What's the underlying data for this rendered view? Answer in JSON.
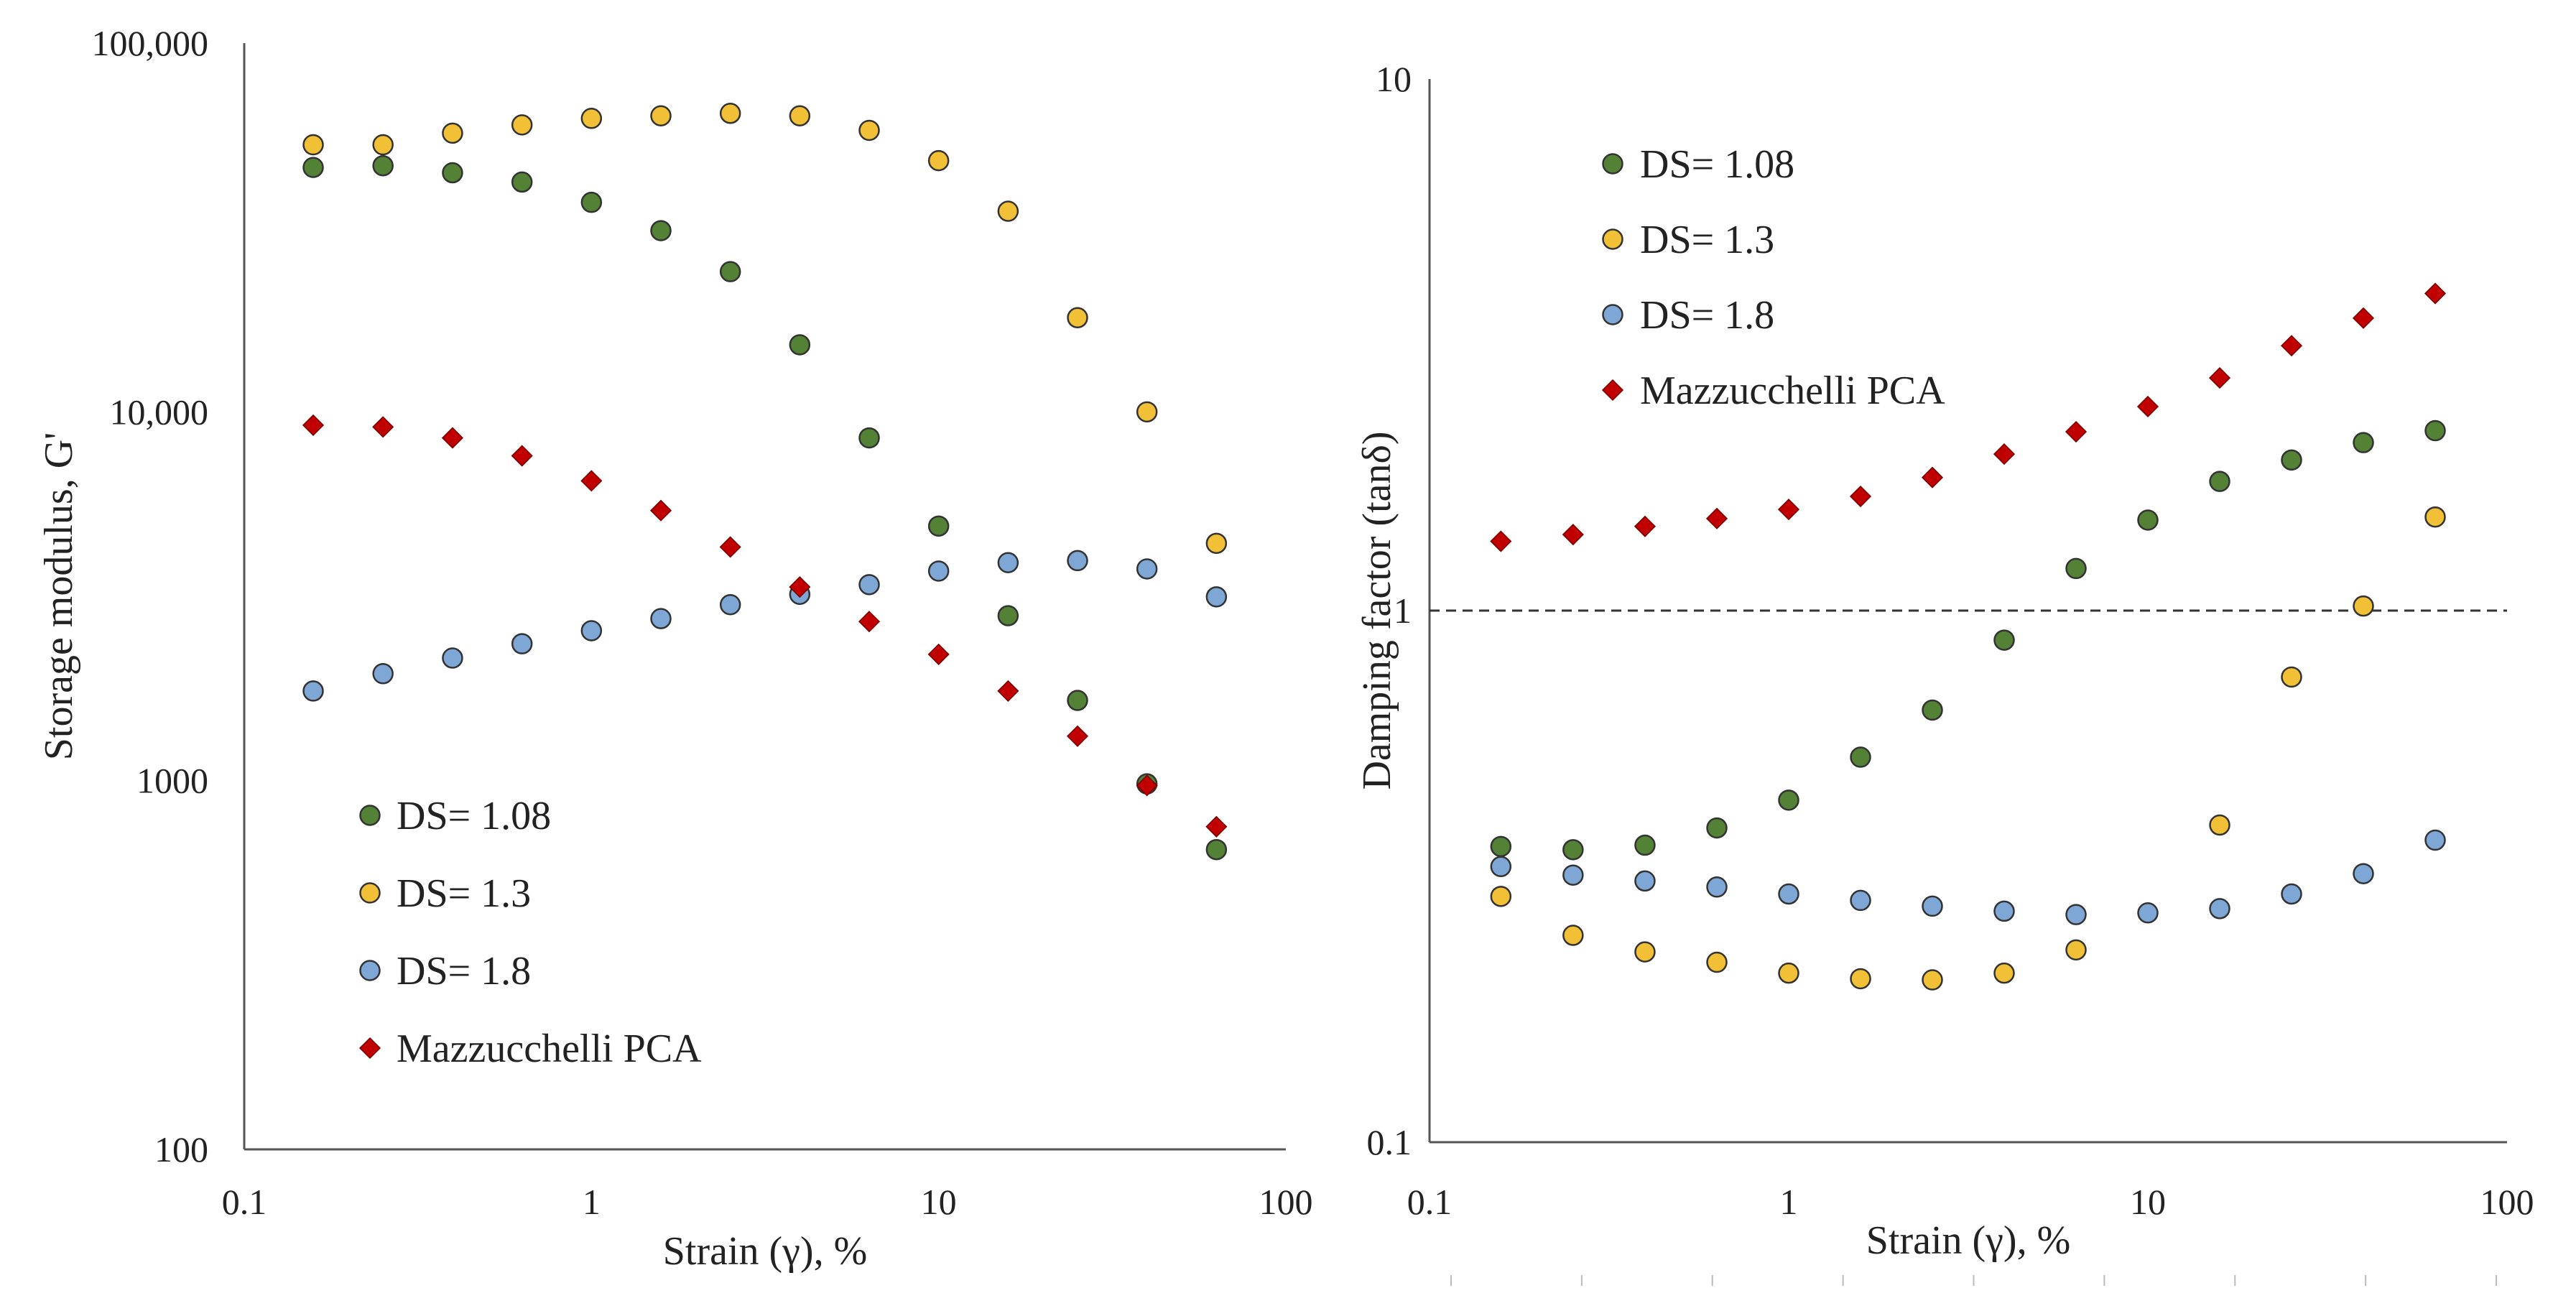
{
  "figure": {
    "charts": [
      "storage-modulus",
      "damping-factor"
    ]
  },
  "colors": {
    "DS= 1.08": "#538135",
    "DS= 1.3": "#f2c037",
    "DS= 1.8": "#7fa7d6",
    "Mazzucchelli PCA": "#c00000",
    "axis": "#555555",
    "reference_line": "#333333"
  },
  "chart_data": [
    {
      "id": "storage-modulus",
      "type": "scatter",
      "xscale": "log",
      "yscale": "log",
      "xlabel": "Strain (γ), %",
      "ylabel": "Storage modulus, G'",
      "xlim": [
        0.1,
        100
      ],
      "ylim": [
        100,
        100000
      ],
      "xticks": [
        0.1,
        1,
        10,
        100
      ],
      "xtick_labels": [
        "0.1",
        "1",
        "10",
        "100"
      ],
      "yticks": [
        100,
        1000,
        10000,
        100000
      ],
      "ytick_labels": [
        "100",
        "1000",
        "10,000",
        "100,000"
      ],
      "legend_position": "bottom-left",
      "x": [
        0.158,
        0.251,
        0.398,
        0.631,
        1.0,
        1.585,
        2.512,
        3.981,
        6.31,
        10.0,
        15.85,
        25.12,
        39.81,
        63.1
      ],
      "series": [
        {
          "name": "DS= 1.08",
          "marker": "circle",
          "values": [
            46000,
            46500,
            44500,
            42000,
            37000,
            31000,
            24000,
            15200,
            8500,
            4900,
            2800,
            1650,
            980,
            650
          ]
        },
        {
          "name": "DS= 1.3",
          "marker": "circle",
          "values": [
            53000,
            53000,
            57000,
            60000,
            62500,
            63500,
            64500,
            63500,
            58000,
            48000,
            35000,
            18000,
            10000,
            4400
          ]
        },
        {
          "name": "DS= 1.8",
          "marker": "circle",
          "values": [
            1750,
            1950,
            2150,
            2350,
            2550,
            2750,
            3000,
            3200,
            3400,
            3700,
            3900,
            3950,
            3750,
            3150
          ]
        },
        {
          "name": "Mazzucchelli PCA",
          "marker": "diamond",
          "values": [
            9200,
            9100,
            8500,
            7600,
            6500,
            5400,
            4300,
            3350,
            2700,
            2200,
            1750,
            1320,
            970,
            750
          ]
        }
      ]
    },
    {
      "id": "damping-factor",
      "type": "scatter",
      "xscale": "log",
      "yscale": "log",
      "xlabel": "Strain (γ), %",
      "ylabel": "Damping factor (tanδ)",
      "xlim": [
        0.1,
        100
      ],
      "ylim": [
        0.1,
        10
      ],
      "xticks": [
        0.1,
        1,
        10,
        100
      ],
      "xtick_labels": [
        "0.1",
        "1",
        "10",
        "100"
      ],
      "yticks": [
        0.1,
        1,
        10
      ],
      "ytick_labels": [
        "0.1",
        "1",
        "10"
      ],
      "reference_line_y": 1,
      "legend_position": "top-left",
      "x": [
        0.158,
        0.251,
        0.398,
        0.631,
        1.0,
        1.585,
        2.512,
        3.981,
        6.31,
        10.0,
        15.85,
        25.12,
        39.81,
        63.1
      ],
      "series": [
        {
          "name": "DS= 1.08",
          "marker": "circle",
          "values": [
            0.36,
            0.355,
            0.362,
            0.39,
            0.44,
            0.53,
            0.65,
            0.88,
            1.2,
            1.48,
            1.75,
            1.92,
            2.07,
            2.18
          ]
        },
        {
          "name": "DS= 1.3",
          "marker": "circle",
          "values": [
            0.29,
            0.245,
            0.228,
            0.218,
            0.208,
            0.203,
            0.202,
            0.208,
            0.23,
            null,
            0.395,
            0.75,
            1.02,
            1.5
          ]
        },
        {
          "name": "DS= 1.8",
          "marker": "circle",
          "values": [
            0.33,
            0.318,
            0.31,
            0.302,
            0.293,
            0.285,
            0.278,
            0.272,
            0.268,
            0.27,
            0.275,
            0.293,
            0.32,
            0.37
          ]
        },
        {
          "name": "Mazzucchelli PCA",
          "marker": "diamond",
          "values": [
            1.35,
            1.39,
            1.44,
            1.49,
            1.55,
            1.64,
            1.78,
            1.97,
            2.17,
            2.42,
            2.74,
            3.15,
            3.55,
            3.95
          ]
        }
      ]
    }
  ]
}
